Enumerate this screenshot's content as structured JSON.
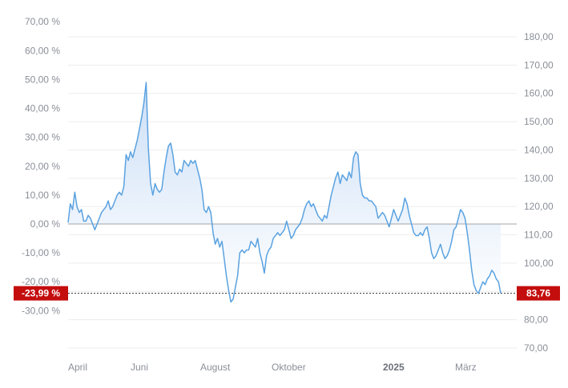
{
  "chart_data": {
    "type": "area",
    "title": "",
    "xlabel": "",
    "ylabel": "",
    "grid": true,
    "x_tick_labels": [
      "April",
      "Juni",
      "August",
      "Oktober",
      "2025",
      "März"
    ],
    "y_left_ticks": [
      {
        "label": "70,00 %",
        "value": 70
      },
      {
        "label": "60,00 %",
        "value": 60
      },
      {
        "label": "50,00 %",
        "value": 50
      },
      {
        "label": "40,00 %",
        "value": 40
      },
      {
        "label": "30,00 %",
        "value": 30
      },
      {
        "label": "20,00 %",
        "value": 20
      },
      {
        "label": "10,00 %",
        "value": 10
      },
      {
        "label": "0,00 %",
        "value": 0
      },
      {
        "label": "-10,00 %",
        "value": -10
      },
      {
        "label": "-20,00 %",
        "value": -20
      },
      {
        "label": "-30,00 %",
        "value": -30
      }
    ],
    "y_right_ticks": [
      {
        "label": "180,00",
        "value": 180
      },
      {
        "label": "170,00",
        "value": 170
      },
      {
        "label": "160,00",
        "value": 160
      },
      {
        "label": "150,00",
        "value": 150
      },
      {
        "label": "140,00",
        "value": 140
      },
      {
        "label": "130,00",
        "value": 130
      },
      {
        "label": "120,00",
        "value": 120
      },
      {
        "label": "110,00",
        "value": 110
      },
      {
        "label": "100,00",
        "value": 100
      },
      {
        "label": "90,00",
        "value": 90
      },
      {
        "label": "80,00",
        "value": 80
      },
      {
        "label": "70,00",
        "value": 70
      }
    ],
    "ylim_percent": [
      -36,
      72
    ],
    "ylim_price": [
      70,
      180
    ],
    "baseline_percent": 0,
    "last_percent_label": "-23,99 %",
    "last_price_label": "83,76",
    "last_percent_value": -23.99,
    "colors": {
      "line": "#5aa2e0",
      "fill_top": "#c9ddf6",
      "fill_bottom": "#ffffff",
      "baseline": "#a0a4aa",
      "badge": "#c40d0d",
      "grid": "#ececec"
    },
    "series": [
      {
        "values": [
          0.5,
          7,
          5,
          11,
          6,
          4,
          5,
          1,
          1,
          3,
          2,
          0,
          -2,
          0,
          2,
          4,
          5,
          6,
          8,
          5,
          6,
          8,
          10,
          11,
          10,
          13,
          24,
          22,
          25,
          23,
          26,
          29,
          33,
          37,
          42,
          49,
          26,
          14,
          10,
          14,
          12,
          11,
          12,
          18,
          23,
          27,
          28,
          24,
          18,
          17,
          19,
          18,
          22,
          21,
          20,
          22,
          21,
          22,
          19,
          16,
          12,
          5,
          4,
          6,
          4,
          -3,
          -7,
          -5,
          -8,
          -6,
          -12,
          -18,
          -23,
          -27,
          -26,
          -22,
          -18,
          -10,
          -9,
          -10,
          -9,
          -9,
          -6,
          -7,
          -8,
          -5,
          -10,
          -13,
          -17,
          -11,
          -9,
          -8,
          -5,
          -4,
          -3,
          -4,
          -3,
          -2,
          1,
          -2,
          -5,
          -4,
          -2,
          -1,
          0,
          2,
          5,
          7,
          8,
          6,
          7,
          5,
          3,
          2,
          1,
          3,
          2,
          6,
          10,
          13,
          16,
          18,
          14,
          17,
          16,
          15,
          18,
          16,
          23,
          25,
          24,
          14,
          10,
          9,
          9,
          8,
          8,
          7,
          6,
          2,
          3,
          4,
          3,
          1,
          -1,
          2,
          5,
          3,
          1,
          3,
          5,
          9,
          7,
          3,
          0,
          -3,
          -4,
          -4,
          -3,
          -4,
          -2,
          -1,
          -5,
          -10,
          -12,
          -11,
          -9,
          -7,
          -10,
          -12,
          -11,
          -9,
          -6,
          -2,
          -1,
          2,
          5,
          4,
          2,
          -3,
          -9,
          -16,
          -21,
          -23,
          -24,
          -22,
          -20,
          -21,
          -19,
          -18,
          -16,
          -17,
          -19,
          -20,
          -23.99
        ]
      }
    ]
  }
}
